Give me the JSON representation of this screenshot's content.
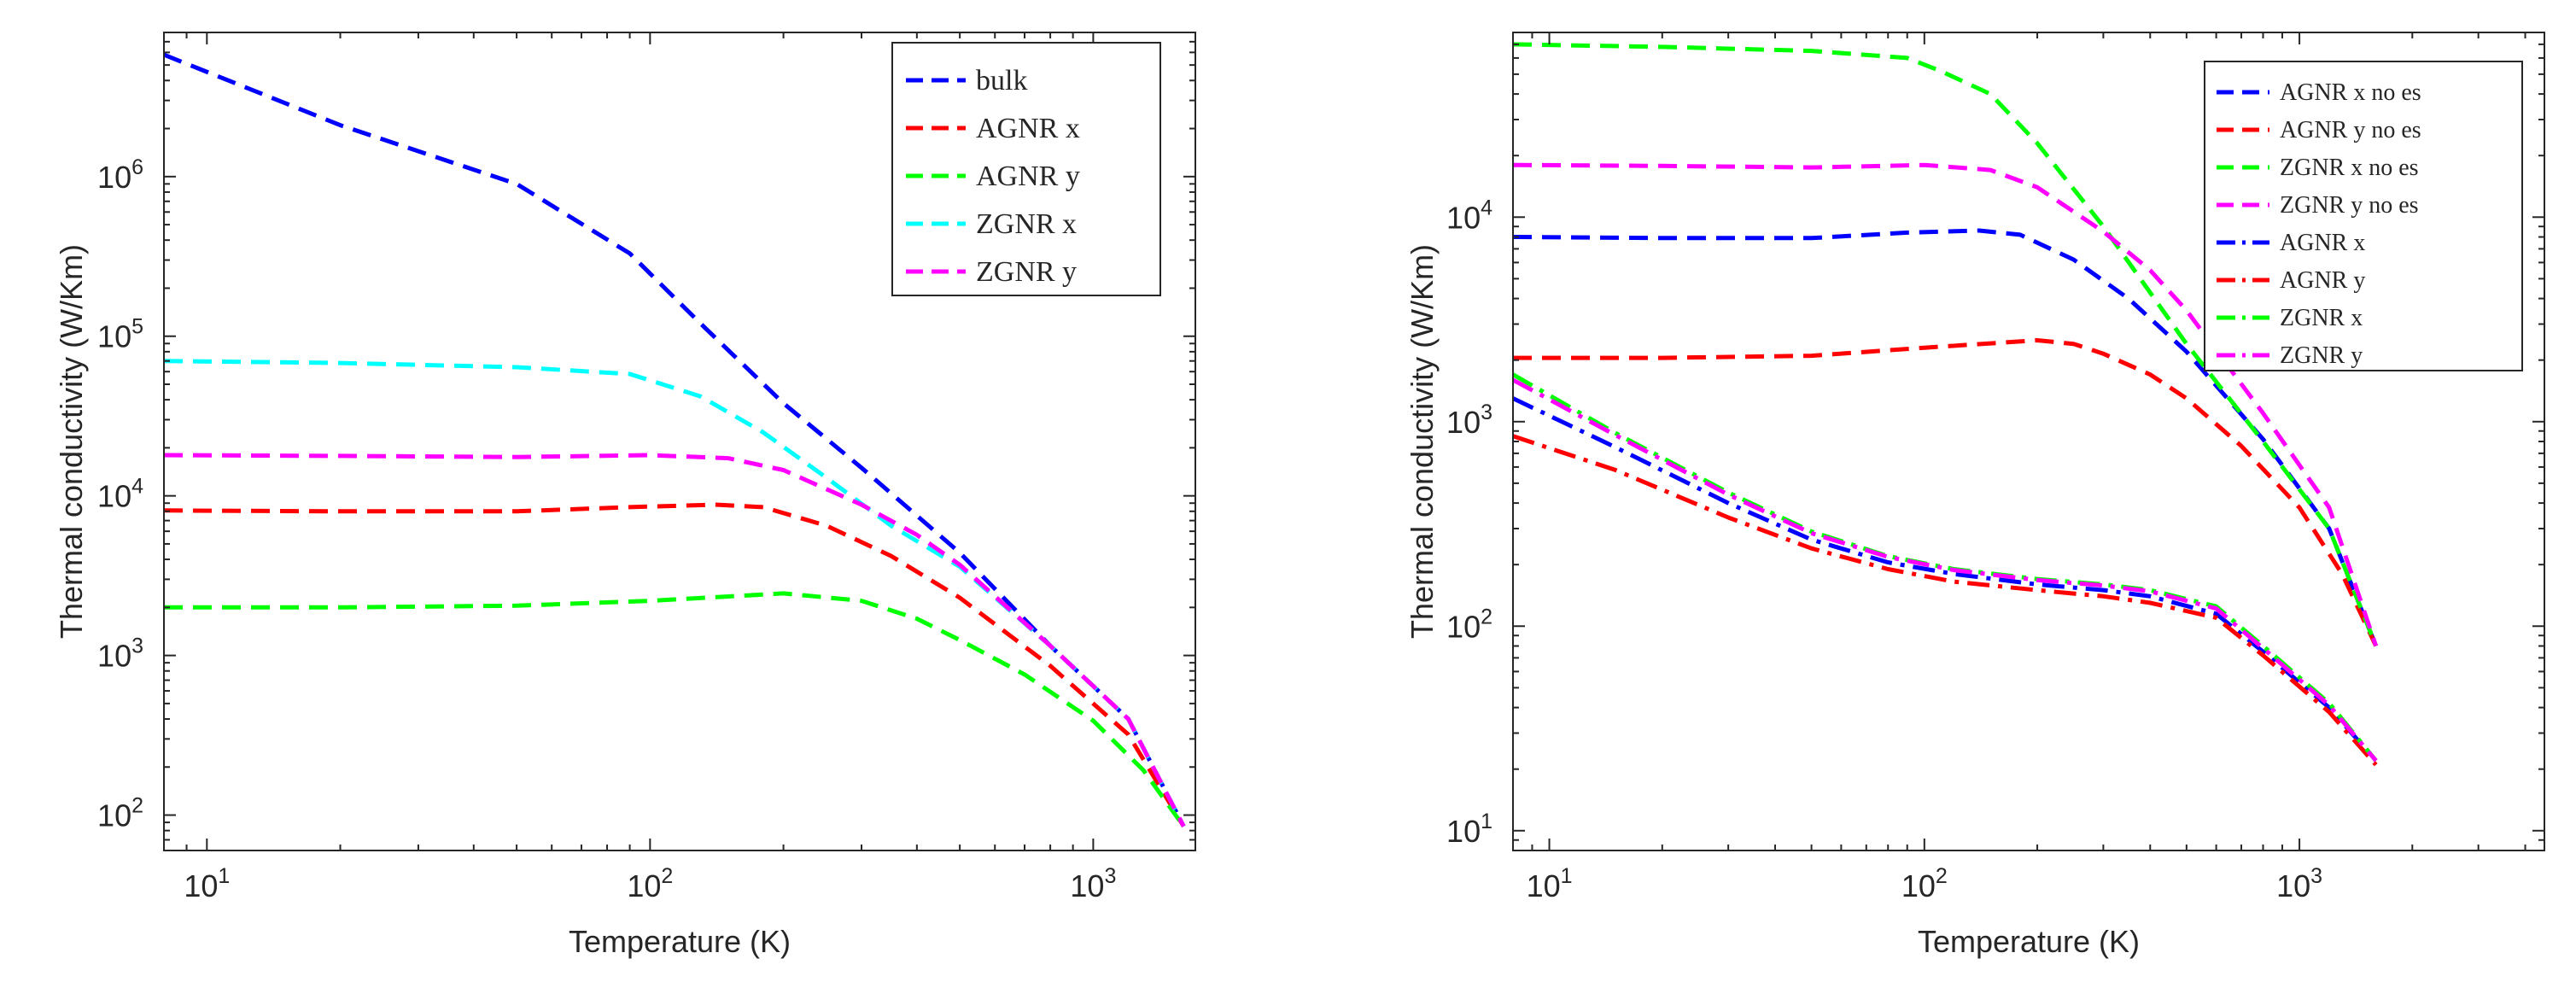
{
  "chart_data": [
    {
      "type": "line",
      "scale": {
        "x": "log",
        "y": "log"
      },
      "xlabel": "Temperature (K)",
      "ylabel": "Thermal conductivity (W/Km)",
      "xlim": [
        8,
        1700
      ],
      "ylim": [
        60,
        8000000
      ],
      "x_ticks": [
        {
          "value": 10,
          "base": "10",
          "exp": "1"
        },
        {
          "value": 100,
          "base": "10",
          "exp": "2"
        },
        {
          "value": 1000,
          "base": "10",
          "exp": "3"
        }
      ],
      "y_ticks": [
        {
          "value": 100,
          "base": "10",
          "exp": "2"
        },
        {
          "value": 1000,
          "base": "10",
          "exp": "3"
        },
        {
          "value": 10000,
          "base": "10",
          "exp": "4"
        },
        {
          "value": 100000,
          "base": "10",
          "exp": "5"
        },
        {
          "value": 1000000,
          "base": "10",
          "exp": "6"
        }
      ],
      "legend_position": "top-right",
      "series": [
        {
          "name": "bulk",
          "color": "#0000ff",
          "style": "dashed",
          "x": [
            8,
            20,
            50,
            90,
            130,
            200,
            300,
            500,
            800,
            1200,
            1600
          ],
          "y": [
            5800000,
            2100000,
            900000,
            330000,
            120000,
            38000,
            15000,
            4400,
            1150,
            400,
            85
          ]
        },
        {
          "name": "AGNR x",
          "color": "#ff0000",
          "style": "dashed",
          "x": [
            8,
            20,
            50,
            90,
            140,
            180,
            250,
            350,
            500,
            800,
            1200,
            1600
          ],
          "y": [
            8100,
            8000,
            8000,
            8500,
            8800,
            8500,
            6500,
            4200,
            2300,
            860,
            320,
            85
          ]
        },
        {
          "name": "AGNR y",
          "color": "#00ff00",
          "style": "dashed",
          "x": [
            8,
            20,
            50,
            100,
            200,
            300,
            400,
            500,
            700,
            1000,
            1300,
            1600
          ],
          "y": [
            2000,
            2000,
            2050,
            2200,
            2450,
            2200,
            1700,
            1250,
            760,
            390,
            190,
            85
          ]
        },
        {
          "name": "ZGNR x",
          "color": "#00ffff",
          "style": "dashed",
          "x": [
            8,
            20,
            50,
            90,
            130,
            180,
            250,
            350,
            500,
            800,
            1200,
            1600
          ],
          "y": [
            70000,
            68000,
            64000,
            58000,
            42000,
            25000,
            13000,
            6500,
            3600,
            1150,
            400,
            85
          ]
        },
        {
          "name": "ZGNR y",
          "color": "#ff00ff",
          "style": "dashed",
          "x": [
            8,
            20,
            50,
            100,
            150,
            200,
            300,
            400,
            500,
            800,
            1200,
            1600
          ],
          "y": [
            18000,
            17800,
            17500,
            18000,
            17200,
            14500,
            8800,
            5700,
            3700,
            1150,
            400,
            85
          ]
        }
      ]
    },
    {
      "type": "line",
      "scale": {
        "x": "log",
        "y": "log"
      },
      "xlabel": "Temperature (K)",
      "ylabel": "Thermal conductivity (W/Km)",
      "xlim": [
        8,
        4500
      ],
      "ylim": [
        8,
        80000
      ],
      "x_ticks": [
        {
          "value": 10,
          "base": "10",
          "exp": "1"
        },
        {
          "value": 100,
          "base": "10",
          "exp": "2"
        },
        {
          "value": 1000,
          "base": "10",
          "exp": "3"
        }
      ],
      "y_ticks": [
        {
          "value": 10,
          "base": "10",
          "exp": "1"
        },
        {
          "value": 100,
          "base": "10",
          "exp": "2"
        },
        {
          "value": 1000,
          "base": "10",
          "exp": "3"
        },
        {
          "value": 10000,
          "base": "10",
          "exp": "4"
        }
      ],
      "legend_position": "top-right",
      "series": [
        {
          "name": "AGNR x no es",
          "color": "#0000ff",
          "style": "dashed",
          "x": [
            8,
            20,
            50,
            90,
            140,
            180,
            250,
            350,
            500,
            800,
            1200,
            1600
          ],
          "y": [
            8000,
            7900,
            7900,
            8400,
            8600,
            8200,
            6200,
            4000,
            2200,
            820,
            300,
            80
          ]
        },
        {
          "name": "AGNR y no es",
          "color": "#ff0000",
          "style": "dashed",
          "x": [
            8,
            20,
            50,
            100,
            200,
            250,
            300,
            400,
            500,
            700,
            1000,
            1300,
            1600
          ],
          "y": [
            2050,
            2050,
            2100,
            2300,
            2500,
            2400,
            2150,
            1700,
            1300,
            760,
            380,
            180,
            80
          ]
        },
        {
          "name": "ZGNR x no es",
          "color": "#00ff00",
          "style": "dashed",
          "x": [
            8,
            20,
            50,
            90,
            110,
            150,
            200,
            300,
            500,
            800,
            1200,
            1600
          ],
          "y": [
            70000,
            68000,
            65000,
            60000,
            52000,
            40000,
            23000,
            9000,
            2400,
            800,
            300,
            80
          ]
        },
        {
          "name": "ZGNR y no es",
          "color": "#ff00ff",
          "style": "dashed",
          "x": [
            8,
            20,
            50,
            100,
            150,
            200,
            300,
            400,
            500,
            800,
            1200,
            1600
          ],
          "y": [
            18000,
            17800,
            17500,
            18000,
            17000,
            14000,
            8500,
            5500,
            3500,
            1100,
            380,
            80
          ]
        },
        {
          "name": "AGNR x",
          "color": "#0000ff",
          "style": "dashdot",
          "x": [
            8,
            15,
            30,
            50,
            80,
            120,
            200,
            300,
            400,
            600,
            800,
            1200,
            1600
          ],
          "y": [
            1300,
            750,
            400,
            265,
            205,
            180,
            160,
            150,
            140,
            115,
            75,
            40,
            22
          ]
        },
        {
          "name": "AGNR y",
          "color": "#ff0000",
          "style": "dashdot",
          "x": [
            8,
            15,
            30,
            50,
            80,
            120,
            200,
            300,
            400,
            600,
            800,
            1200,
            1600
          ],
          "y": [
            850,
            580,
            340,
            240,
            190,
            165,
            150,
            140,
            130,
            110,
            72,
            38,
            21
          ]
        },
        {
          "name": "ZGNR x",
          "color": "#00ff00",
          "style": "dashdot",
          "x": [
            8,
            15,
            30,
            50,
            80,
            120,
            200,
            300,
            400,
            600,
            800,
            1200,
            1600
          ],
          "y": [
            1700,
            880,
            450,
            290,
            220,
            190,
            170,
            160,
            150,
            125,
            80,
            42,
            22
          ]
        },
        {
          "name": "ZGNR y",
          "color": "#ff00ff",
          "style": "dashdot",
          "x": [
            8,
            15,
            30,
            50,
            80,
            120,
            200,
            300,
            400,
            600,
            800,
            1200,
            1600
          ],
          "y": [
            1600,
            860,
            440,
            285,
            218,
            188,
            168,
            158,
            148,
            122,
            78,
            41,
            22
          ]
        }
      ]
    }
  ]
}
